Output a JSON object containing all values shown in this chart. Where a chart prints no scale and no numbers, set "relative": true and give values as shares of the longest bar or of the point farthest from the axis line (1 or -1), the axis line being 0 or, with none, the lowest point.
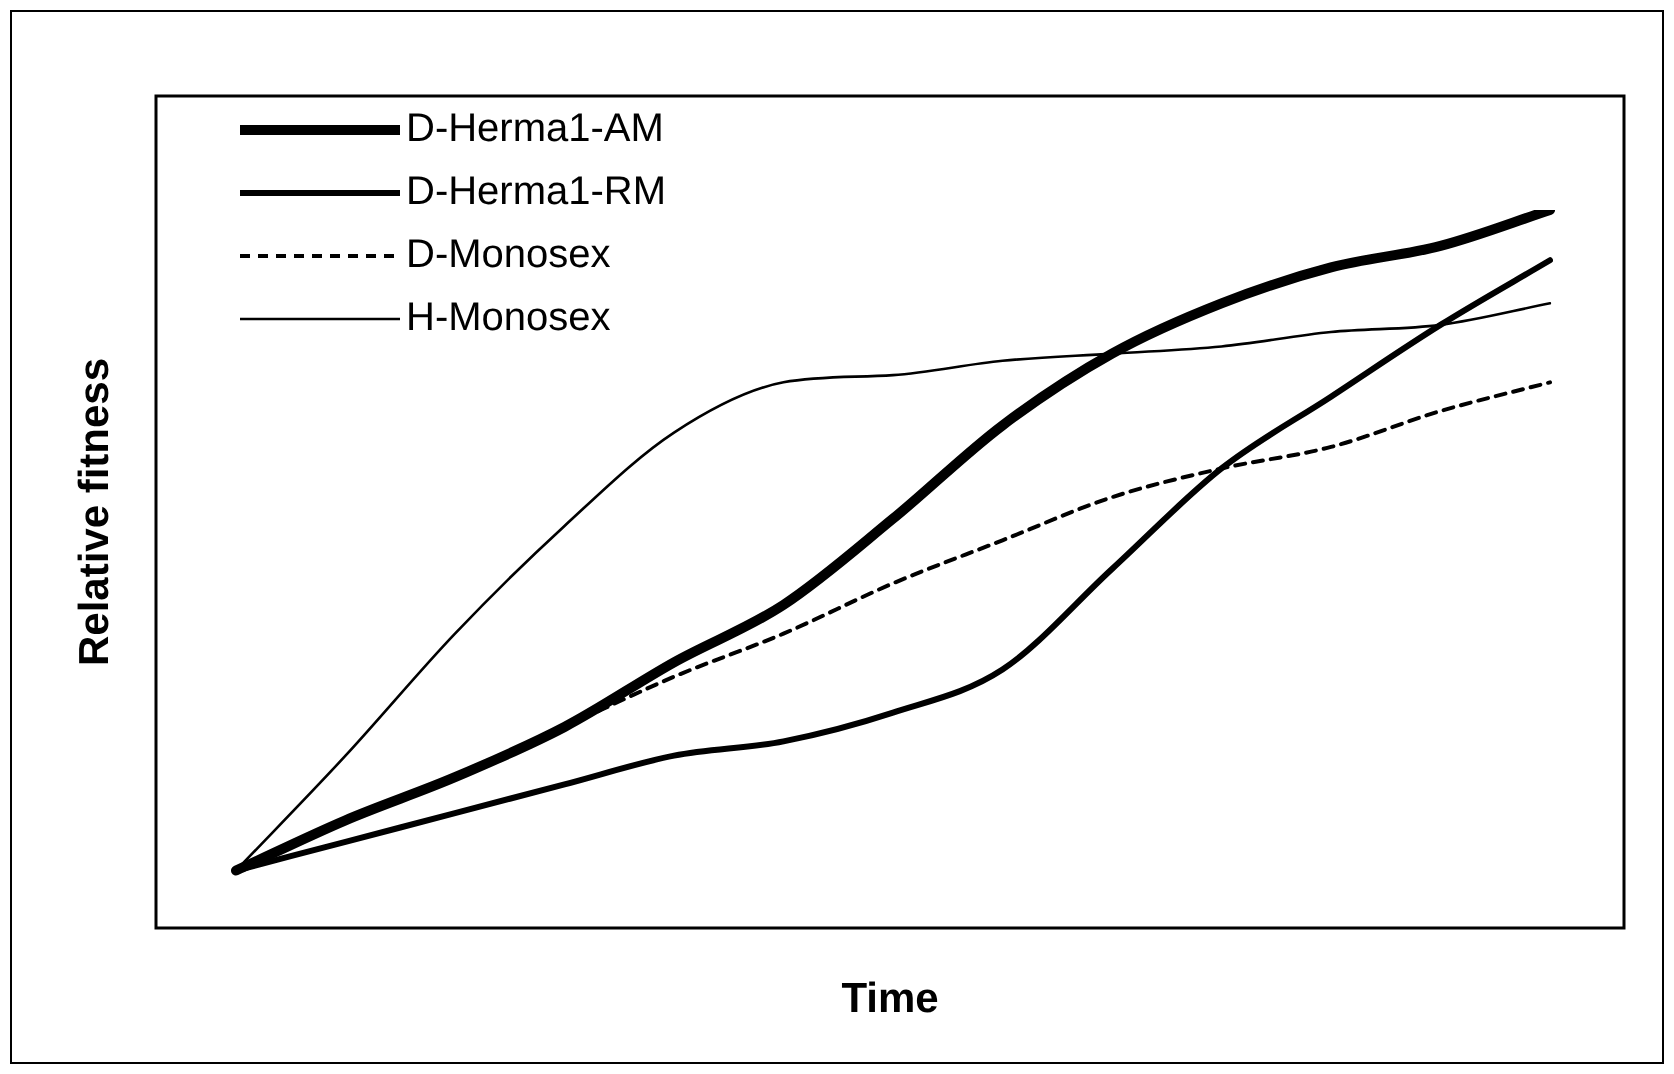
{
  "chart_data": {
    "type": "line",
    "relative": true,
    "xlabel": "Time",
    "ylabel": "Relative fitness",
    "legend": "top left",
    "marker": "none",
    "categories": [
      null,
      null,
      null,
      null,
      null,
      null,
      null,
      null,
      null,
      null,
      null,
      null,
      null
    ],
    "series": [
      {
        "name": "D-Herma1-AM",
        "color": "#000000",
        "line_style": "solid",
        "values": [
          0.08,
          0.15,
          0.21,
          0.28,
          0.37,
          0.45,
          0.57,
          0.7,
          0.8,
          0.87,
          0.92,
          0.95,
          1
        ]
      },
      {
        "name": "D-Herma1-RM",
        "color": "#000000",
        "line_style": "solid",
        "values": [
          0.08,
          0.12,
          0.16,
          0.2,
          0.24,
          0.26,
          0.3,
          0.36,
          0.5,
          0.64,
          0.74,
          0.84,
          0.93
        ]
      },
      {
        "name": "D-Monosex",
        "color": "#000000",
        "line_style": "dashed",
        "values": [
          0.08,
          0.15,
          0.21,
          0.28,
          0.35,
          0.41,
          0.48,
          0.54,
          0.6,
          0.64,
          0.67,
          0.72,
          0.76
        ]
      },
      {
        "name": "H-Monosex",
        "color": "#000000",
        "line_style": "solid",
        "values": [
          0.08,
          0.24,
          0.41,
          0.56,
          0.69,
          0.76,
          0.77,
          0.79,
          0.8,
          0.81,
          0.83,
          0.84,
          0.87
        ]
      }
    ]
  }
}
